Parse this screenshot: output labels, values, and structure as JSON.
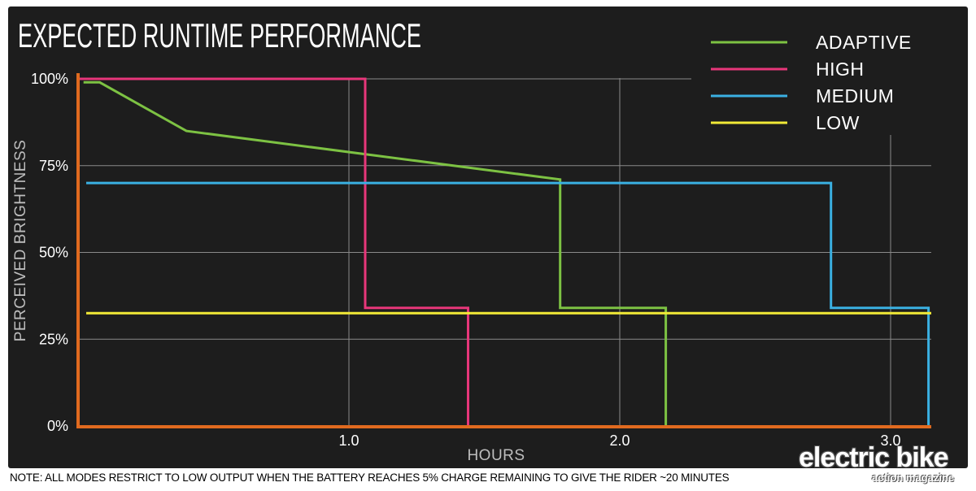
{
  "chart_data": {
    "type": "line",
    "title": "EXPECTED RUNTIME PERFORMANCE",
    "xlabel": "HOURS",
    "ylabel": "PERCEIVED BRIGHTNESS",
    "x_ticks": [
      {
        "value": 1.0,
        "label": "1.0"
      },
      {
        "value": 2.0,
        "label": "2.0"
      },
      {
        "value": 3.0,
        "label": "3.0"
      }
    ],
    "y_ticks": [
      {
        "value": 0,
        "label": "0%"
      },
      {
        "value": 25,
        "label": "25%"
      },
      {
        "value": 50,
        "label": "50%"
      },
      {
        "value": 75,
        "label": "75%"
      },
      {
        "value": 100,
        "label": "100%"
      }
    ],
    "xlim": [
      0,
      3.15
    ],
    "ylim": [
      0,
      100
    ],
    "grid": true,
    "legend_position": "top-right",
    "series": [
      {
        "name": "ADAPTIVE",
        "color": "#7dc243",
        "points": [
          [
            0.02,
            99
          ],
          [
            0.08,
            99
          ],
          [
            0.4,
            85
          ],
          [
            1.78,
            71
          ],
          [
            1.78,
            34
          ],
          [
            2.17,
            34
          ],
          [
            2.17,
            0
          ]
        ]
      },
      {
        "name": "HIGH",
        "color": "#e8367a",
        "points": [
          [
            0,
            100
          ],
          [
            1.06,
            100
          ],
          [
            1.06,
            34
          ],
          [
            1.44,
            34
          ],
          [
            1.44,
            0
          ]
        ]
      },
      {
        "name": "MEDIUM",
        "color": "#3ab0e2",
        "points": [
          [
            0.03,
            70
          ],
          [
            2.78,
            70
          ],
          [
            2.78,
            34
          ],
          [
            3.14,
            34
          ],
          [
            3.14,
            0
          ]
        ]
      },
      {
        "name": "LOW",
        "color": "#f2ea37",
        "points": [
          [
            0.03,
            32.5
          ],
          [
            3.15,
            32.5
          ]
        ]
      }
    ]
  },
  "note": "NOTE: ALL MODES RESTRICT TO LOW OUTPUT WHEN THE BATTERY REACHES 5% CHARGE REMAINING TO GIVE THE RIDER ~20 MINUTES",
  "logo": {
    "main": "electric bike",
    "sub": "action magazine"
  },
  "colors": {
    "axis": "#e06a1f",
    "grid": "#8a8a8a",
    "background": "#1d1d1d"
  }
}
